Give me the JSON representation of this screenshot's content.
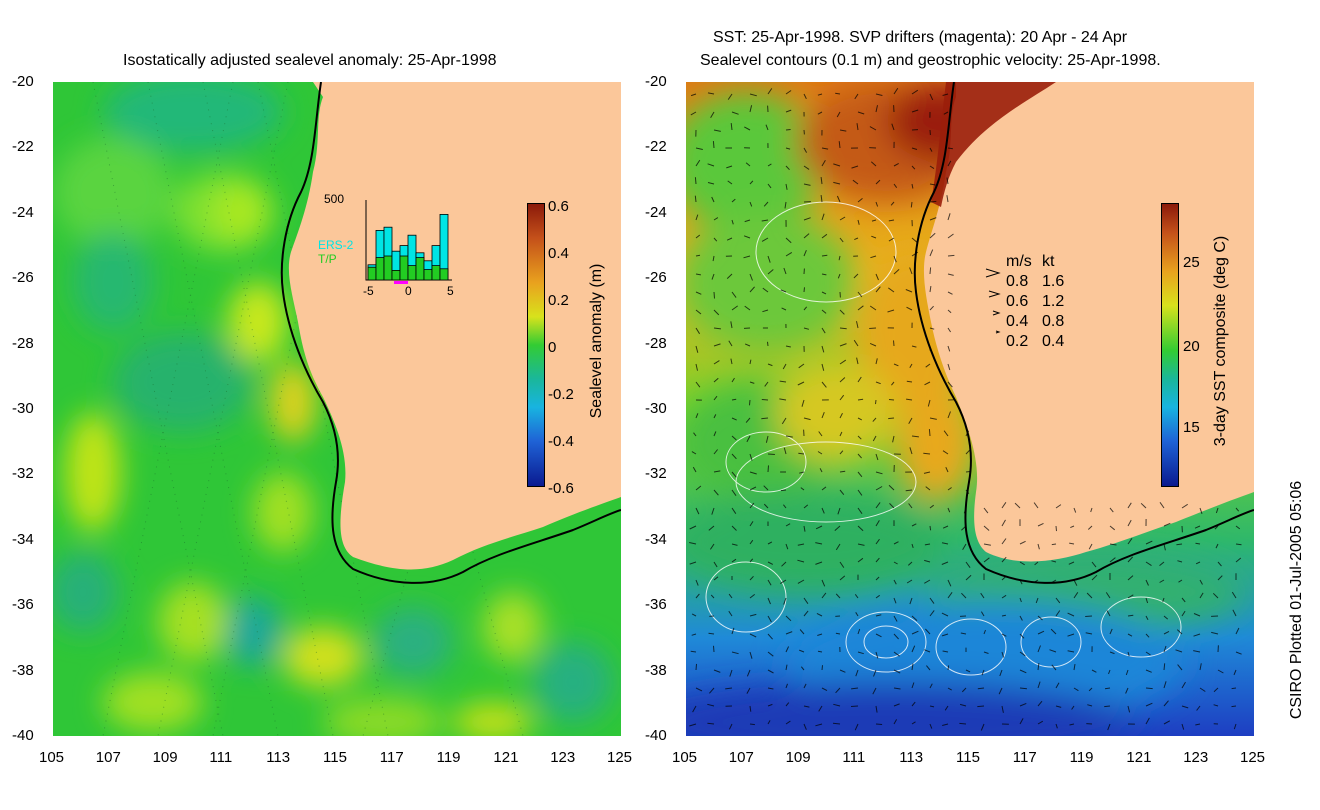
{
  "left_panel": {
    "title": "Isostatically adjusted sealevel anomaly: 25-Apr-1998",
    "colorbar_label": "Sealevel anomaly (m)",
    "colorbar_ticks": [
      "0.6",
      "0.4",
      "0.2",
      "0",
      "-0.2",
      "-0.4",
      "-0.6"
    ],
    "inset": {
      "ymax": "500",
      "series": [
        {
          "name": "ERS-2",
          "color": "#00e5e5"
        },
        {
          "name": "T/P",
          "color": "#22cc22"
        }
      ],
      "xticks": [
        "-5",
        "0",
        "5"
      ],
      "bars_ers2": [
        95,
        310,
        330,
        180,
        215,
        280,
        170,
        120,
        215,
        410
      ],
      "bars_tp": [
        80,
        140,
        150,
        60,
        150,
        90,
        140,
        65,
        90,
        70
      ]
    },
    "colors": {
      "anomaly_zero": "#33cc33",
      "land": "#fbc79a"
    }
  },
  "right_panel": {
    "title_line1": "SST: 25-Apr-1998. SVP drifters (magenta): 20 Apr - 24 Apr",
    "title_line2": "Sealevel contours (0.1 m) and geostrophic velocity: 25-Apr-1998.",
    "colorbar_label": "3-day SST composite (deg C)",
    "colorbar_ticks": [
      "25",
      "20",
      "15"
    ],
    "velocity_legend": {
      "header_ms": "m/s",
      "header_kt": "kt",
      "rows": [
        {
          "ms": "0.8",
          "kt": "1.6"
        },
        {
          "ms": "0.6",
          "kt": "1.2"
        },
        {
          "ms": "0.4",
          "kt": "0.8"
        },
        {
          "ms": "0.2",
          "kt": "0.4"
        }
      ]
    }
  },
  "axes": {
    "lat_ticks": [
      "-20",
      "-22",
      "-24",
      "-26",
      "-28",
      "-30",
      "-32",
      "-34",
      "-36",
      "-38",
      "-40"
    ],
    "lon_ticks": [
      "105",
      "107",
      "109",
      "111",
      "113",
      "115",
      "117",
      "119",
      "121",
      "123",
      "125"
    ]
  },
  "credit": "CSIRO Plotted 01-Jul-2005 05:06"
}
